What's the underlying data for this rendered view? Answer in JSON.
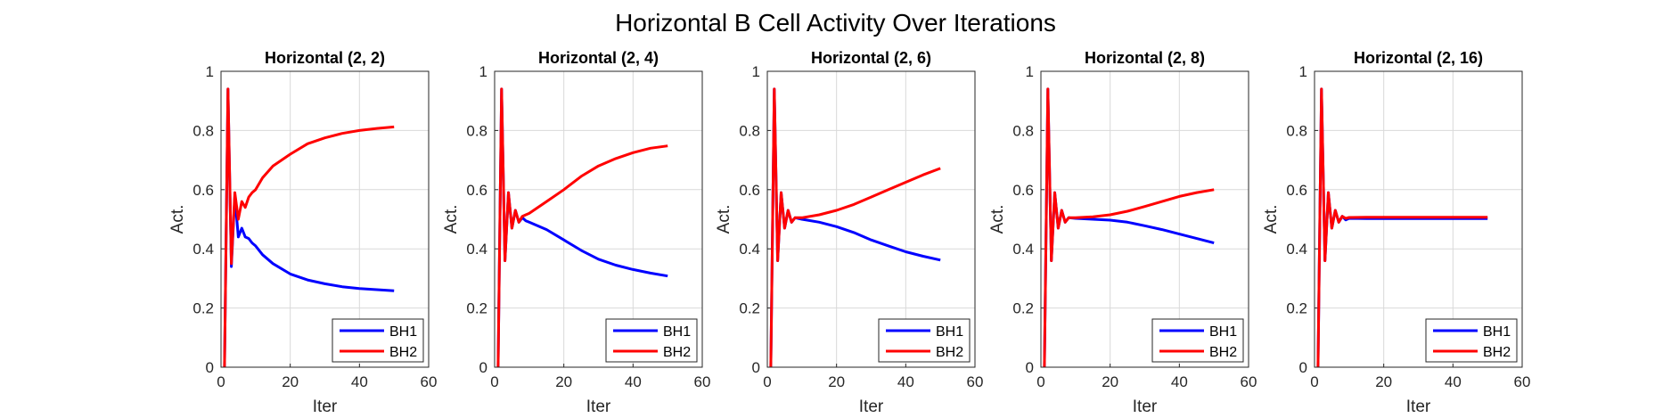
{
  "figure": {
    "title": "Horizontal B Cell Activity Over Iterations"
  },
  "colors": {
    "BH1": "#0000ff",
    "BH2": "#ff0000",
    "grid": "#d9d9d9",
    "axis": "#262626"
  },
  "chart_data": [
    {
      "type": "line",
      "title": "Horizontal (2, 2)",
      "xlabel": "Iter",
      "ylabel": "Act.",
      "xlim": [
        0,
        60
      ],
      "ylim": [
        0,
        1
      ],
      "xticks": [
        0,
        20,
        40,
        60
      ],
      "yticks": [
        0,
        0.2,
        0.4,
        0.6,
        0.8,
        1
      ],
      "grid": true,
      "legend": "bottom-right",
      "series": [
        {
          "name": "BH1",
          "x": [
            1,
            2,
            3,
            4,
            5,
            6,
            7,
            8,
            9,
            10,
            12,
            15,
            20,
            25,
            30,
            35,
            40,
            45,
            50
          ],
          "y": [
            0,
            0.94,
            0.34,
            0.58,
            0.44,
            0.47,
            0.44,
            0.435,
            0.42,
            0.41,
            0.38,
            0.35,
            0.315,
            0.295,
            0.282,
            0.272,
            0.266,
            0.262,
            0.258
          ]
        },
        {
          "name": "BH2",
          "x": [
            1,
            2,
            3,
            4,
            5,
            6,
            7,
            8,
            9,
            10,
            12,
            15,
            20,
            25,
            30,
            35,
            40,
            45,
            50
          ],
          "y": [
            0,
            0.94,
            0.35,
            0.59,
            0.5,
            0.56,
            0.54,
            0.575,
            0.59,
            0.6,
            0.64,
            0.68,
            0.72,
            0.755,
            0.775,
            0.79,
            0.8,
            0.807,
            0.812
          ]
        }
      ]
    },
    {
      "type": "line",
      "title": "Horizontal (2, 4)",
      "xlabel": "Iter",
      "ylabel": "Act.",
      "xlim": [
        0,
        60
      ],
      "ylim": [
        0,
        1
      ],
      "xticks": [
        0,
        20,
        40,
        60
      ],
      "yticks": [
        0,
        0.2,
        0.4,
        0.6,
        0.8,
        1
      ],
      "grid": true,
      "legend": "bottom-right",
      "series": [
        {
          "name": "BH1",
          "x": [
            1,
            2,
            3,
            4,
            5,
            6,
            7,
            8,
            9,
            10,
            15,
            20,
            25,
            30,
            35,
            40,
            45,
            50
          ],
          "y": [
            0,
            0.94,
            0.36,
            0.59,
            0.47,
            0.53,
            0.49,
            0.505,
            0.495,
            0.49,
            0.465,
            0.43,
            0.395,
            0.365,
            0.345,
            0.33,
            0.318,
            0.308
          ]
        },
        {
          "name": "BH2",
          "x": [
            1,
            2,
            3,
            4,
            5,
            6,
            7,
            8,
            9,
            10,
            15,
            20,
            25,
            30,
            35,
            40,
            45,
            50
          ],
          "y": [
            0,
            0.94,
            0.36,
            0.59,
            0.47,
            0.53,
            0.49,
            0.51,
            0.515,
            0.52,
            0.56,
            0.6,
            0.645,
            0.68,
            0.705,
            0.725,
            0.74,
            0.748
          ]
        }
      ]
    },
    {
      "type": "line",
      "title": "Horizontal (2, 6)",
      "xlabel": "Iter",
      "ylabel": "Act.",
      "xlim": [
        0,
        60
      ],
      "ylim": [
        0,
        1
      ],
      "xticks": [
        0,
        20,
        40,
        60
      ],
      "yticks": [
        0,
        0.2,
        0.4,
        0.6,
        0.8,
        1
      ],
      "grid": true,
      "legend": "bottom-right",
      "series": [
        {
          "name": "BH1",
          "x": [
            1,
            2,
            3,
            4,
            5,
            6,
            7,
            8,
            10,
            15,
            20,
            25,
            30,
            35,
            40,
            45,
            50
          ],
          "y": [
            0,
            0.94,
            0.36,
            0.59,
            0.47,
            0.53,
            0.49,
            0.505,
            0.5,
            0.49,
            0.475,
            0.455,
            0.43,
            0.41,
            0.39,
            0.375,
            0.362
          ]
        },
        {
          "name": "BH2",
          "x": [
            1,
            2,
            3,
            4,
            5,
            6,
            7,
            8,
            10,
            15,
            20,
            25,
            30,
            35,
            40,
            45,
            50
          ],
          "y": [
            0,
            0.94,
            0.36,
            0.59,
            0.47,
            0.53,
            0.49,
            0.505,
            0.505,
            0.515,
            0.53,
            0.55,
            0.575,
            0.6,
            0.625,
            0.65,
            0.672
          ]
        }
      ]
    },
    {
      "type": "line",
      "title": "Horizontal (2, 8)",
      "xlabel": "Iter",
      "ylabel": "Act.",
      "xlim": [
        0,
        60
      ],
      "ylim": [
        0,
        1
      ],
      "xticks": [
        0,
        20,
        40,
        60
      ],
      "yticks": [
        0,
        0.2,
        0.4,
        0.6,
        0.8,
        1
      ],
      "grid": true,
      "legend": "bottom-right",
      "series": [
        {
          "name": "BH1",
          "x": [
            1,
            2,
            3,
            4,
            5,
            6,
            7,
            8,
            10,
            15,
            20,
            25,
            30,
            35,
            40,
            45,
            50
          ],
          "y": [
            0,
            0.94,
            0.36,
            0.59,
            0.47,
            0.53,
            0.49,
            0.505,
            0.503,
            0.5,
            0.497,
            0.49,
            0.478,
            0.465,
            0.45,
            0.435,
            0.42
          ]
        },
        {
          "name": "BH2",
          "x": [
            1,
            2,
            3,
            4,
            5,
            6,
            7,
            8,
            10,
            15,
            20,
            25,
            30,
            35,
            40,
            45,
            50
          ],
          "y": [
            0,
            0.94,
            0.36,
            0.59,
            0.47,
            0.53,
            0.49,
            0.505,
            0.505,
            0.508,
            0.515,
            0.527,
            0.543,
            0.56,
            0.577,
            0.59,
            0.6
          ]
        }
      ]
    },
    {
      "type": "line",
      "title": "Horizontal (2, 16)",
      "xlabel": "Iter",
      "ylabel": "Act.",
      "xlim": [
        0,
        60
      ],
      "ylim": [
        0,
        1
      ],
      "xticks": [
        0,
        20,
        40,
        60
      ],
      "yticks": [
        0,
        0.2,
        0.4,
        0.6,
        0.8,
        1
      ],
      "grid": true,
      "legend": "bottom-right",
      "series": [
        {
          "name": "BH1",
          "x": [
            1,
            2,
            3,
            4,
            5,
            6,
            7,
            8,
            9,
            10,
            15,
            20,
            30,
            40,
            50
          ],
          "y": [
            0,
            0.94,
            0.36,
            0.59,
            0.47,
            0.53,
            0.49,
            0.51,
            0.498,
            0.503,
            0.502,
            0.502,
            0.502,
            0.502,
            0.502
          ]
        },
        {
          "name": "BH2",
          "x": [
            1,
            2,
            3,
            4,
            5,
            6,
            7,
            8,
            9,
            10,
            15,
            20,
            30,
            40,
            50
          ],
          "y": [
            0,
            0.94,
            0.36,
            0.59,
            0.47,
            0.53,
            0.49,
            0.51,
            0.503,
            0.506,
            0.507,
            0.507,
            0.507,
            0.507,
            0.507
          ]
        }
      ]
    }
  ]
}
